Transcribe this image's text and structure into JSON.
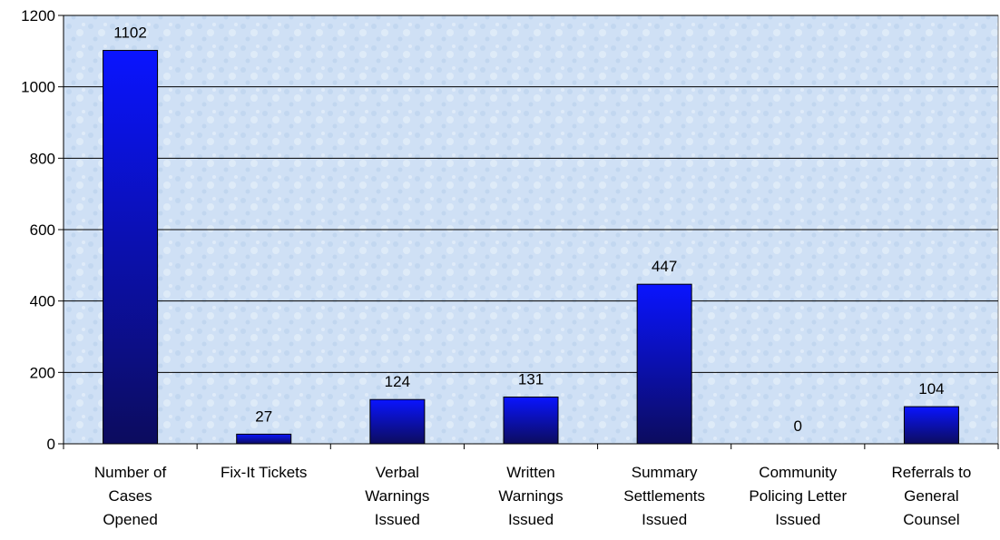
{
  "chart_data": {
    "type": "bar",
    "title": "",
    "xlabel": "",
    "ylabel": "",
    "ylim": [
      0,
      1200
    ],
    "yticks": [
      0,
      200,
      400,
      600,
      800,
      1000,
      1200
    ],
    "grid": true,
    "categories": [
      "Number of Cases Opened",
      "Fix-It Tickets",
      "Verbal Warnings Issued",
      "Written Warnings Issued",
      "Summary Settlements Issued",
      "Community Policing Letter Issued",
      "Referrals to General Counsel"
    ],
    "category_lines": [
      [
        "Number of",
        "Cases",
        "Opened"
      ],
      [
        "Fix-It Tickets"
      ],
      [
        "Verbal",
        "Warnings",
        "Issued"
      ],
      [
        "Written",
        "Warnings",
        "Issued"
      ],
      [
        "Summary",
        "Settlements",
        "Issued"
      ],
      [
        "Community",
        "Policing Letter",
        "Issued"
      ],
      [
        "Referrals to",
        "General",
        "Counsel"
      ]
    ],
    "values": [
      1102,
      27,
      124,
      131,
      447,
      0,
      104
    ],
    "data_labels": [
      "1102",
      "27",
      "124",
      "131",
      "447",
      "0",
      "104"
    ],
    "colors": {
      "bar_top": "#0a14ff",
      "bar_bottom": "#0c0c5e",
      "plot_bg": "#cfe0f5",
      "grid": "#000000"
    }
  }
}
